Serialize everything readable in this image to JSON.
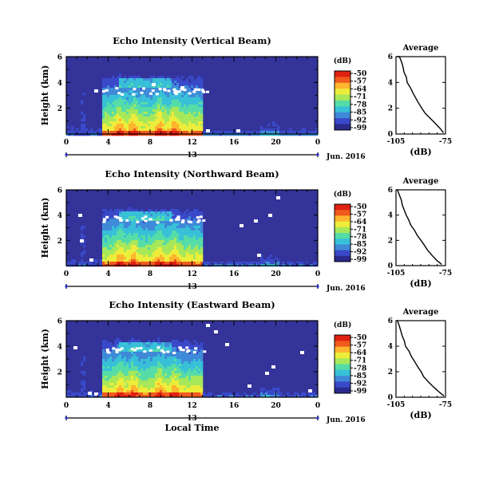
{
  "chart_data": [
    {
      "type": "heatmap",
      "title": "Echo Intensity (Vertical Beam)",
      "ylabel": "Height (km)",
      "yticks": [
        "0",
        "2",
        "4",
        "6"
      ],
      "xticks": [
        "0",
        "4",
        "8",
        "12",
        "16",
        "20",
        "0"
      ],
      "date_label": "13",
      "month_label": "Jun. 2016",
      "ylim": [
        0,
        6
      ],
      "xlim": [
        0,
        24
      ],
      "colorbar": {
        "unit": "(dB)",
        "ticks": [
          "-50",
          "-57",
          "-64",
          "-71",
          "-78",
          "-85",
          "-92",
          "-99"
        ]
      },
      "profile": {
        "title": "Average",
        "xlabel": "(dB)",
        "xticks": [
          "-105",
          "-75"
        ],
        "yticks": [
          "0",
          "2",
          "4",
          "6"
        ],
        "xlim": [
          -105,
          -75
        ],
        "ylim": [
          0,
          6
        ],
        "x": [
          -76,
          -78,
          -81,
          -84,
          -87,
          -89,
          -91,
          -93,
          -95,
          -96,
          -98,
          -99,
          -100,
          -101,
          -102,
          -103,
          -104
        ],
        "y": [
          0.1,
          0.4,
          0.8,
          1.2,
          1.6,
          2.0,
          2.4,
          2.8,
          3.2,
          3.6,
          4.0,
          4.4,
          4.8,
          5.2,
          5.6,
          6.0,
          6.0
        ]
      }
    },
    {
      "type": "heatmap",
      "title": "Echo Intensity (Northward Beam)",
      "ylabel": "Height (km)",
      "yticks": [
        "0",
        "2",
        "4",
        "6"
      ],
      "xticks": [
        "0",
        "4",
        "8",
        "12",
        "16",
        "20",
        "0"
      ],
      "date_label": "13",
      "month_label": "Jun. 2016",
      "ylim": [
        0,
        6
      ],
      "xlim": [
        0,
        24
      ],
      "colorbar": {
        "unit": "(dB)",
        "ticks": [
          "-50",
          "-57",
          "-64",
          "-71",
          "-78",
          "-85",
          "-92",
          "-99"
        ]
      },
      "profile": {
        "title": "Average",
        "xlabel": "(dB)",
        "xticks": [
          "-105",
          "-75"
        ],
        "yticks": [
          "0",
          "2",
          "4",
          "6"
        ],
        "xlim": [
          -105,
          -75
        ],
        "ylim": [
          0,
          6
        ],
        "x": [
          -77,
          -80,
          -83,
          -86,
          -88,
          -90,
          -92,
          -94,
          -96,
          -97,
          -99,
          -100,
          -101,
          -102,
          -103,
          -104,
          -104
        ],
        "y": [
          0.1,
          0.4,
          0.8,
          1.2,
          1.6,
          2.0,
          2.4,
          2.8,
          3.2,
          3.6,
          4.0,
          4.4,
          4.8,
          5.2,
          5.6,
          6.0,
          6.0
        ]
      }
    },
    {
      "type": "heatmap",
      "title": "Echo Intensity (Eastward Beam)",
      "ylabel": "Height (km)",
      "yticks": [
        "0",
        "2",
        "4",
        "6"
      ],
      "xticks": [
        "0",
        "4",
        "8",
        "12",
        "16",
        "20",
        "0"
      ],
      "date_label": "13",
      "month_label": "Jun. 2016",
      "xlabel": "Local Time",
      "ylim": [
        0,
        6
      ],
      "xlim": [
        0,
        24
      ],
      "colorbar": {
        "unit": "(dB)",
        "ticks": [
          "-50",
          "-57",
          "-64",
          "-71",
          "-78",
          "-85",
          "-92",
          "-99"
        ]
      },
      "profile": {
        "title": "Average",
        "xlabel": "(dB)",
        "xticks": [
          "-105",
          "-75"
        ],
        "yticks": [
          "0",
          "2",
          "4",
          "6"
        ],
        "xlim": [
          -105,
          -75
        ],
        "ylim": [
          0,
          6
        ],
        "x": [
          -76,
          -79,
          -82,
          -85,
          -88,
          -90,
          -92,
          -94,
          -96,
          -97,
          -99,
          -100,
          -101,
          -102,
          -103,
          -104,
          -104
        ],
        "y": [
          0.1,
          0.4,
          0.8,
          1.2,
          1.6,
          2.0,
          2.4,
          2.8,
          3.2,
          3.6,
          4.0,
          4.4,
          4.8,
          5.2,
          5.6,
          6.0,
          6.0
        ]
      }
    }
  ],
  "colors": {
    "background": "#33339a",
    "palette": [
      "#2a2a8c",
      "#3949c9",
      "#3f8ad8",
      "#38c0d8",
      "#56dca7",
      "#a6e85a",
      "#eded3b",
      "#ffb52d",
      "#f05a1e",
      "#e02010"
    ]
  }
}
